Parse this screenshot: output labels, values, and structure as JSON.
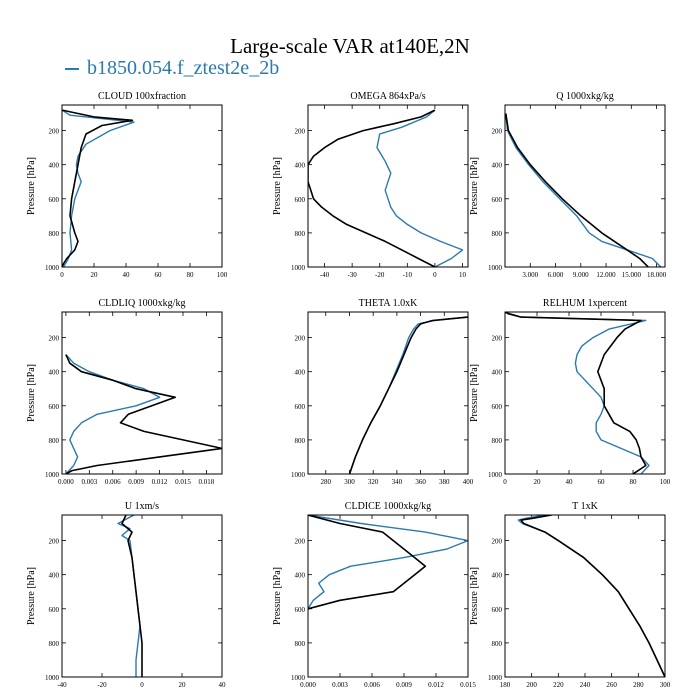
{
  "title": "Large-scale VAR at140E,2N",
  "legend": {
    "label": "b1850.054.f_ztest2e_2b",
    "color": "#2a7ab0"
  },
  "colors": {
    "reference": "#000000",
    "model": "#2a7ab0"
  },
  "chart_data": [
    {
      "type": "line",
      "title": "CLOUD  100xfraction",
      "ylabel": "Pressure [hPa]",
      "xlim": [
        0,
        100
      ],
      "ylim": [
        1000,
        50
      ],
      "xticks": [
        "0",
        "20",
        "40",
        "60",
        "80",
        "100"
      ],
      "xtick_values": [
        0,
        20,
        40,
        60,
        80,
        100
      ],
      "yticks": [
        "200",
        "400",
        "600",
        "800",
        "1000"
      ],
      "ytick_values": [
        200,
        400,
        600,
        800,
        1000
      ],
      "series": [
        {
          "key": "ref",
          "y": [
            80,
            120,
            140,
            170,
            220,
            300,
            400,
            500,
            600,
            700,
            800,
            850,
            900,
            950,
            980,
            1000
          ],
          "x": [
            0,
            20,
            44,
            25,
            15,
            12,
            10,
            8,
            6,
            5,
            8,
            10,
            8,
            3,
            1,
            0
          ]
        },
        {
          "key": "model",
          "y": [
            80,
            110,
            150,
            200,
            280,
            350,
            400,
            450,
            500,
            550,
            600,
            700,
            800,
            900,
            950,
            1000
          ],
          "x": [
            0,
            5,
            45,
            30,
            15,
            10,
            9,
            10,
            12,
            10,
            8,
            6,
            5,
            6,
            4,
            1
          ]
        }
      ]
    },
    {
      "type": "line",
      "title": "OMEGA  864xPa/s",
      "ylabel": "Pressure [hPa]",
      "xlim": [
        -46,
        12
      ],
      "ylim": [
        1000,
        50
      ],
      "xticks": [
        "-40",
        "-30",
        "-20",
        "-10",
        "0",
        "10"
      ],
      "xtick_values": [
        -40,
        -30,
        -20,
        -10,
        0,
        10
      ],
      "yticks": [
        "200",
        "400",
        "600",
        "800",
        "1000"
      ],
      "ytick_values": [
        200,
        400,
        600,
        800,
        1000
      ],
      "series": [
        {
          "key": "ref",
          "y": [
            80,
            120,
            160,
            200,
            250,
            300,
            350,
            400,
            450,
            500,
            550,
            600,
            650,
            700,
            750,
            800,
            850,
            900,
            950,
            1000
          ],
          "x": [
            0,
            -5,
            -15,
            -26,
            -35,
            -40,
            -44,
            -46,
            -46,
            -46,
            -45,
            -44,
            -41,
            -37,
            -32,
            -25,
            -18,
            -12,
            -6,
            0
          ]
        },
        {
          "key": "model",
          "y": [
            80,
            120,
            180,
            220,
            300,
            380,
            450,
            500,
            550,
            600,
            650,
            700,
            750,
            800,
            850,
            900,
            950,
            1000
          ],
          "x": [
            0,
            -3,
            -12,
            -20,
            -21,
            -18,
            -16,
            -17,
            -18,
            -17,
            -16,
            -14,
            -10,
            -5,
            2,
            10,
            6,
            0
          ]
        }
      ]
    },
    {
      "type": "line",
      "title": "Q  1000xkg/kg",
      "ylabel": "Pressure [hPa]",
      "xlim": [
        0,
        19000
      ],
      "ylim": [
        1000,
        50
      ],
      "xticks": [
        "3.000",
        "6.000",
        "9.000",
        "12.000",
        "15.000",
        "18.000"
      ],
      "xtick_values": [
        3000,
        6000,
        9000,
        12000,
        15000,
        18000
      ],
      "yticks": [
        "200",
        "400",
        "600",
        "800",
        "1000"
      ],
      "ytick_values": [
        200,
        400,
        600,
        800,
        1000
      ],
      "series": [
        {
          "key": "ref",
          "y": [
            100,
            200,
            300,
            400,
            500,
            600,
            700,
            800,
            900,
            950,
            1000
          ],
          "x": [
            100,
            400,
            1500,
            3000,
            4800,
            6800,
            9000,
            11500,
            14500,
            16000,
            17000
          ]
        },
        {
          "key": "model",
          "y": [
            100,
            200,
            300,
            400,
            500,
            600,
            700,
            800,
            850,
            900,
            950,
            1000
          ],
          "x": [
            80,
            300,
            1300,
            2800,
            4500,
            6500,
            8500,
            10000,
            11500,
            14500,
            17500,
            18500
          ]
        }
      ]
    },
    {
      "type": "line",
      "title": "CLDLIQ  1000xkg/kg",
      "ylabel": "Pressure [hPa]",
      "xlim": [
        -0.0005,
        0.02
      ],
      "ylim": [
        1000,
        50
      ],
      "xticks": [
        "0.000",
        "0.003",
        "0.006",
        "0.009",
        "0.012",
        "0.015",
        "0.018"
      ],
      "xtick_values": [
        0,
        0.003,
        0.006,
        0.009,
        0.012,
        0.015,
        0.018
      ],
      "yticks": [
        "200",
        "400",
        "600",
        "800",
        "1000"
      ],
      "ytick_values": [
        200,
        400,
        600,
        800,
        1000
      ],
      "series": [
        {
          "key": "ref",
          "y": [
            300,
            350,
            400,
            450,
            500,
            550,
            600,
            650,
            700,
            750,
            800,
            850,
            900,
            950,
            980,
            1000
          ],
          "x": [
            0,
            0.0005,
            0.002,
            0.006,
            0.009,
            0.014,
            0.011,
            0.008,
            0.007,
            0.01,
            0.015,
            0.02,
            0.012,
            0.004,
            0.0008,
            0
          ]
        },
        {
          "key": "model",
          "y": [
            300,
            350,
            400,
            450,
            500,
            550,
            600,
            650,
            700,
            750,
            800,
            850,
            900,
            950,
            1000
          ],
          "x": [
            0,
            0.001,
            0.003,
            0.006,
            0.01,
            0.012,
            0.009,
            0.004,
            0.002,
            0.001,
            0.0005,
            0.001,
            0.0015,
            0.001,
            0
          ]
        }
      ]
    },
    {
      "type": "line",
      "title": "THETA  1.0xK",
      "ylabel": "",
      "xlim": [
        265,
        400
      ],
      "ylim": [
        1000,
        50
      ],
      "xticks": [
        "280",
        "300",
        "320",
        "340",
        "360",
        "380",
        "400"
      ],
      "xtick_values": [
        280,
        300,
        320,
        340,
        360,
        380,
        400
      ],
      "yticks": [
        "200",
        "400",
        "600",
        "800",
        "1000"
      ],
      "ytick_values": [
        200,
        400,
        600,
        800,
        1000
      ],
      "series": [
        {
          "key": "ref",
          "y": [
            80,
            100,
            120,
            150,
            200,
            300,
            400,
            500,
            600,
            700,
            800,
            900,
            1000
          ],
          "x": [
            400,
            370,
            360,
            356,
            352,
            346,
            340,
            333,
            326,
            318,
            311,
            305,
            300
          ]
        },
        {
          "key": "model",
          "y": [
            80,
            100,
            120,
            150,
            200,
            300,
            400,
            500,
            600,
            700,
            800,
            900,
            1000
          ],
          "x": [
            400,
            372,
            358,
            354,
            350,
            345,
            339,
            333,
            326,
            318,
            311,
            305,
            300
          ]
        }
      ]
    },
    {
      "type": "line",
      "title": "RELHUM  1xpercent",
      "ylabel": "Pressure [hPa]",
      "xlim": [
        0,
        100
      ],
      "ylim": [
        1000,
        50
      ],
      "xticks": [
        "0",
        "20",
        "40",
        "60",
        "80",
        "100"
      ],
      "xtick_values": [
        0,
        20,
        40,
        60,
        80,
        100
      ],
      "yticks": [
        "200",
        "400",
        "600",
        "800",
        "1000"
      ],
      "ytick_values": [
        200,
        400,
        600,
        800,
        1000
      ],
      "series": [
        {
          "key": "ref",
          "y": [
            50,
            60,
            80,
            100,
            150,
            200,
            300,
            400,
            500,
            600,
            700,
            750,
            800,
            850,
            900,
            950,
            1000
          ],
          "x": [
            0,
            2,
            10,
            85,
            75,
            70,
            62,
            58,
            62,
            62,
            68,
            78,
            82,
            84,
            85,
            88,
            80
          ]
        },
        {
          "key": "model",
          "y": [
            50,
            60,
            80,
            100,
            150,
            200,
            250,
            300,
            350,
            400,
            450,
            500,
            550,
            600,
            650,
            700,
            750,
            800,
            900,
            950,
            1000
          ],
          "x": [
            0,
            3,
            10,
            88,
            65,
            55,
            48,
            45,
            44,
            45,
            50,
            55,
            60,
            62,
            60,
            57,
            57,
            60,
            85,
            90,
            85
          ]
        }
      ]
    },
    {
      "type": "line",
      "title": "U  1xm/s",
      "ylabel": "Pressure [hPa]",
      "xlim": [
        -40,
        40
      ],
      "ylim": [
        1000,
        50
      ],
      "xticks": [
        "-40",
        "-20",
        "0",
        "20",
        "40"
      ],
      "xtick_values": [
        -40,
        -20,
        0,
        20,
        40
      ],
      "yticks": [
        "200",
        "400",
        "600",
        "800",
        "1000"
      ],
      "ytick_values": [
        200,
        400,
        600,
        800,
        1000
      ],
      "series": [
        {
          "key": "ref",
          "y": [
            50,
            100,
            150,
            200,
            300,
            400,
            500,
            600,
            700,
            800,
            900,
            1000
          ],
          "x": [
            -8,
            -10,
            -5,
            -7,
            -5,
            -4,
            -3,
            -2,
            -1,
            0,
            0,
            0
          ]
        },
        {
          "key": "model",
          "y": [
            50,
            100,
            130,
            170,
            200,
            300,
            400,
            500,
            600,
            700,
            800,
            900,
            1000
          ],
          "x": [
            -4,
            -12,
            -6,
            -10,
            -6,
            -5,
            -4,
            -3,
            -2,
            -1,
            -2,
            -3,
            -3
          ]
        }
      ]
    },
    {
      "type": "line",
      "title": "CLDICE  1000xkg/kg",
      "ylabel": "Pressure [hPa]",
      "xlim": [
        0,
        0.015
      ],
      "ylim": [
        1000,
        50
      ],
      "xticks": [
        "0.000",
        "0.003",
        "0.006",
        "0.009",
        "0.012",
        "0.015"
      ],
      "xtick_values": [
        0,
        0.003,
        0.006,
        0.009,
        0.012,
        0.015
      ],
      "yticks": [
        "200",
        "400",
        "600",
        "800",
        "1000"
      ],
      "ytick_values": [
        200,
        400,
        600,
        800,
        1000
      ],
      "series": [
        {
          "key": "ref",
          "y": [
            50,
            100,
            150,
            200,
            250,
            300,
            350,
            400,
            450,
            500,
            550,
            600
          ],
          "x": [
            0,
            0.003,
            0.007,
            0.008,
            0.009,
            0.01,
            0.011,
            0.01,
            0.009,
            0.008,
            0.003,
            0
          ]
        },
        {
          "key": "model",
          "y": [
            50,
            100,
            150,
            200,
            250,
            300,
            350,
            400,
            450,
            500,
            550,
            600
          ],
          "x": [
            0,
            0.005,
            0.011,
            0.015,
            0.013,
            0.009,
            0.004,
            0.002,
            0.001,
            0.0015,
            0.0005,
            0
          ]
        }
      ]
    },
    {
      "type": "line",
      "title": "T  1xK",
      "ylabel": "Pressure [hPa]",
      "xlim": [
        180,
        300
      ],
      "ylim": [
        1000,
        50
      ],
      "xticks": [
        "180",
        "200",
        "220",
        "240",
        "260",
        "280",
        "300"
      ],
      "xtick_values": [
        180,
        200,
        220,
        240,
        260,
        280,
        300
      ],
      "yticks": [
        "200",
        "400",
        "600",
        "800",
        "1000"
      ],
      "ytick_values": [
        200,
        400,
        600,
        800,
        1000
      ],
      "series": [
        {
          "key": "ref",
          "y": [
            50,
            70,
            80,
            100,
            150,
            200,
            300,
            400,
            500,
            600,
            700,
            800,
            900,
            1000
          ],
          "x": [
            215,
            200,
            192,
            194,
            210,
            220,
            239,
            253,
            265,
            273,
            281,
            288,
            294,
            300
          ]
        },
        {
          "key": "model",
          "y": [
            50,
            70,
            80,
            100,
            150,
            200,
            300,
            400,
            500,
            600,
            700,
            800,
            900,
            1000
          ],
          "x": [
            210,
            195,
            190,
            193,
            210,
            220,
            239,
            253,
            265,
            273,
            281,
            288,
            294,
            300
          ]
        }
      ]
    }
  ]
}
